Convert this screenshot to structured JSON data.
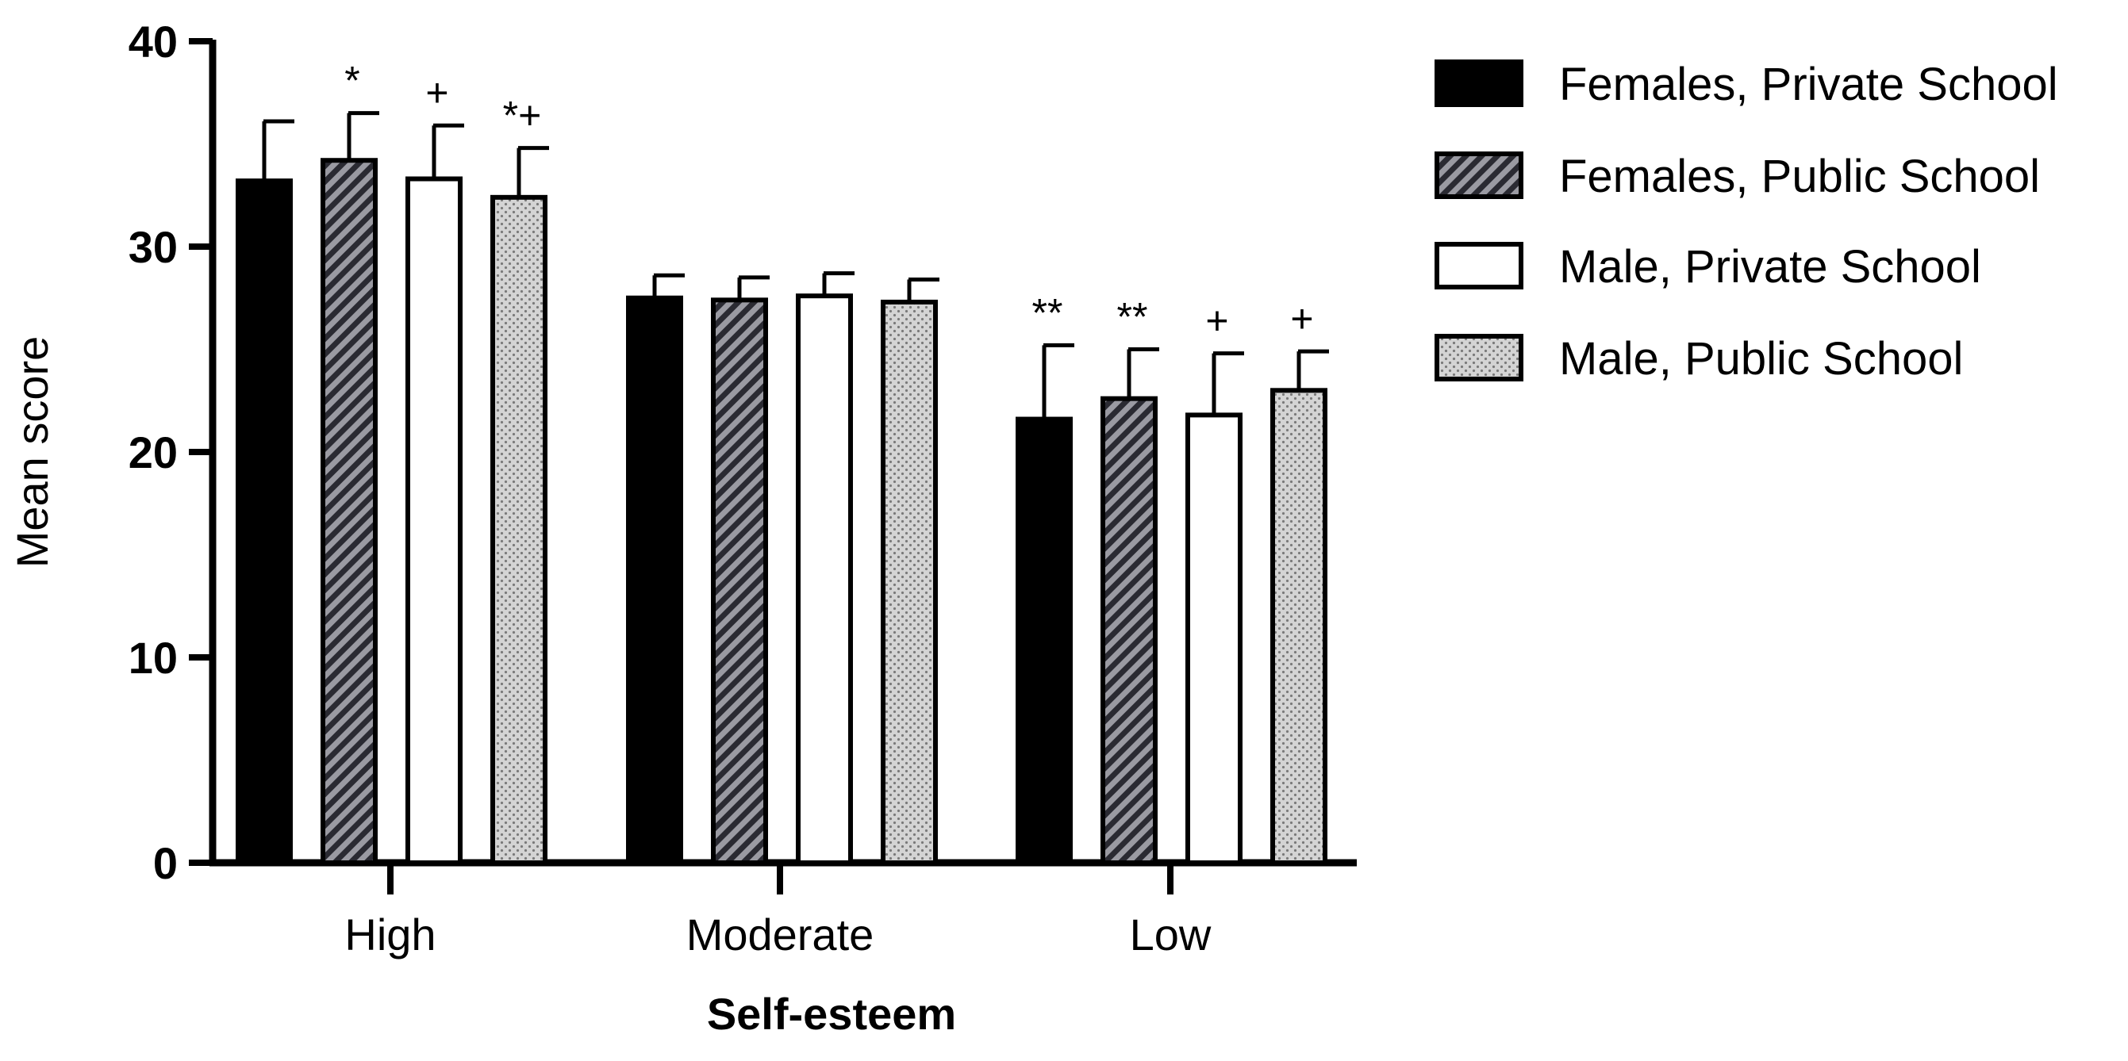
{
  "chart_data": {
    "type": "bar",
    "title": "",
    "xlabel": "Self-esteem",
    "ylabel": "Mean score",
    "ylim": [
      0,
      40
    ],
    "yticks": [
      "0",
      "10",
      "20",
      "30",
      "40"
    ],
    "categories": [
      "High",
      "Moderate",
      "Low"
    ],
    "series": [
      {
        "name": "Females, Private School",
        "values": [
          33.2,
          27.5,
          21.6
        ],
        "errors": [
          2.9,
          1.1,
          3.6
        ],
        "annotations": [
          "",
          "",
          "**"
        ],
        "fill": "#000000"
      },
      {
        "name": "Females, Public School",
        "values": [
          34.2,
          27.4,
          22.6
        ],
        "errors": [
          2.3,
          1.1,
          2.4
        ],
        "annotations": [
          "*",
          "",
          "**"
        ],
        "fill": "#2a2a32"
      },
      {
        "name": "Male, Private School",
        "values": [
          33.3,
          27.6,
          21.8
        ],
        "errors": [
          2.6,
          1.1,
          3.0
        ],
        "annotations": [
          "+",
          "",
          "+"
        ],
        "fill": "#ffffff"
      },
      {
        "name": "Male, Public School",
        "values": [
          32.4,
          27.3,
          23.0
        ],
        "errors": [
          2.4,
          1.1,
          1.9
        ],
        "annotations": [
          "*+",
          "",
          "+"
        ],
        "fill": "#c8c8c8"
      }
    ],
    "legend_position": "top-right",
    "grid": false
  }
}
